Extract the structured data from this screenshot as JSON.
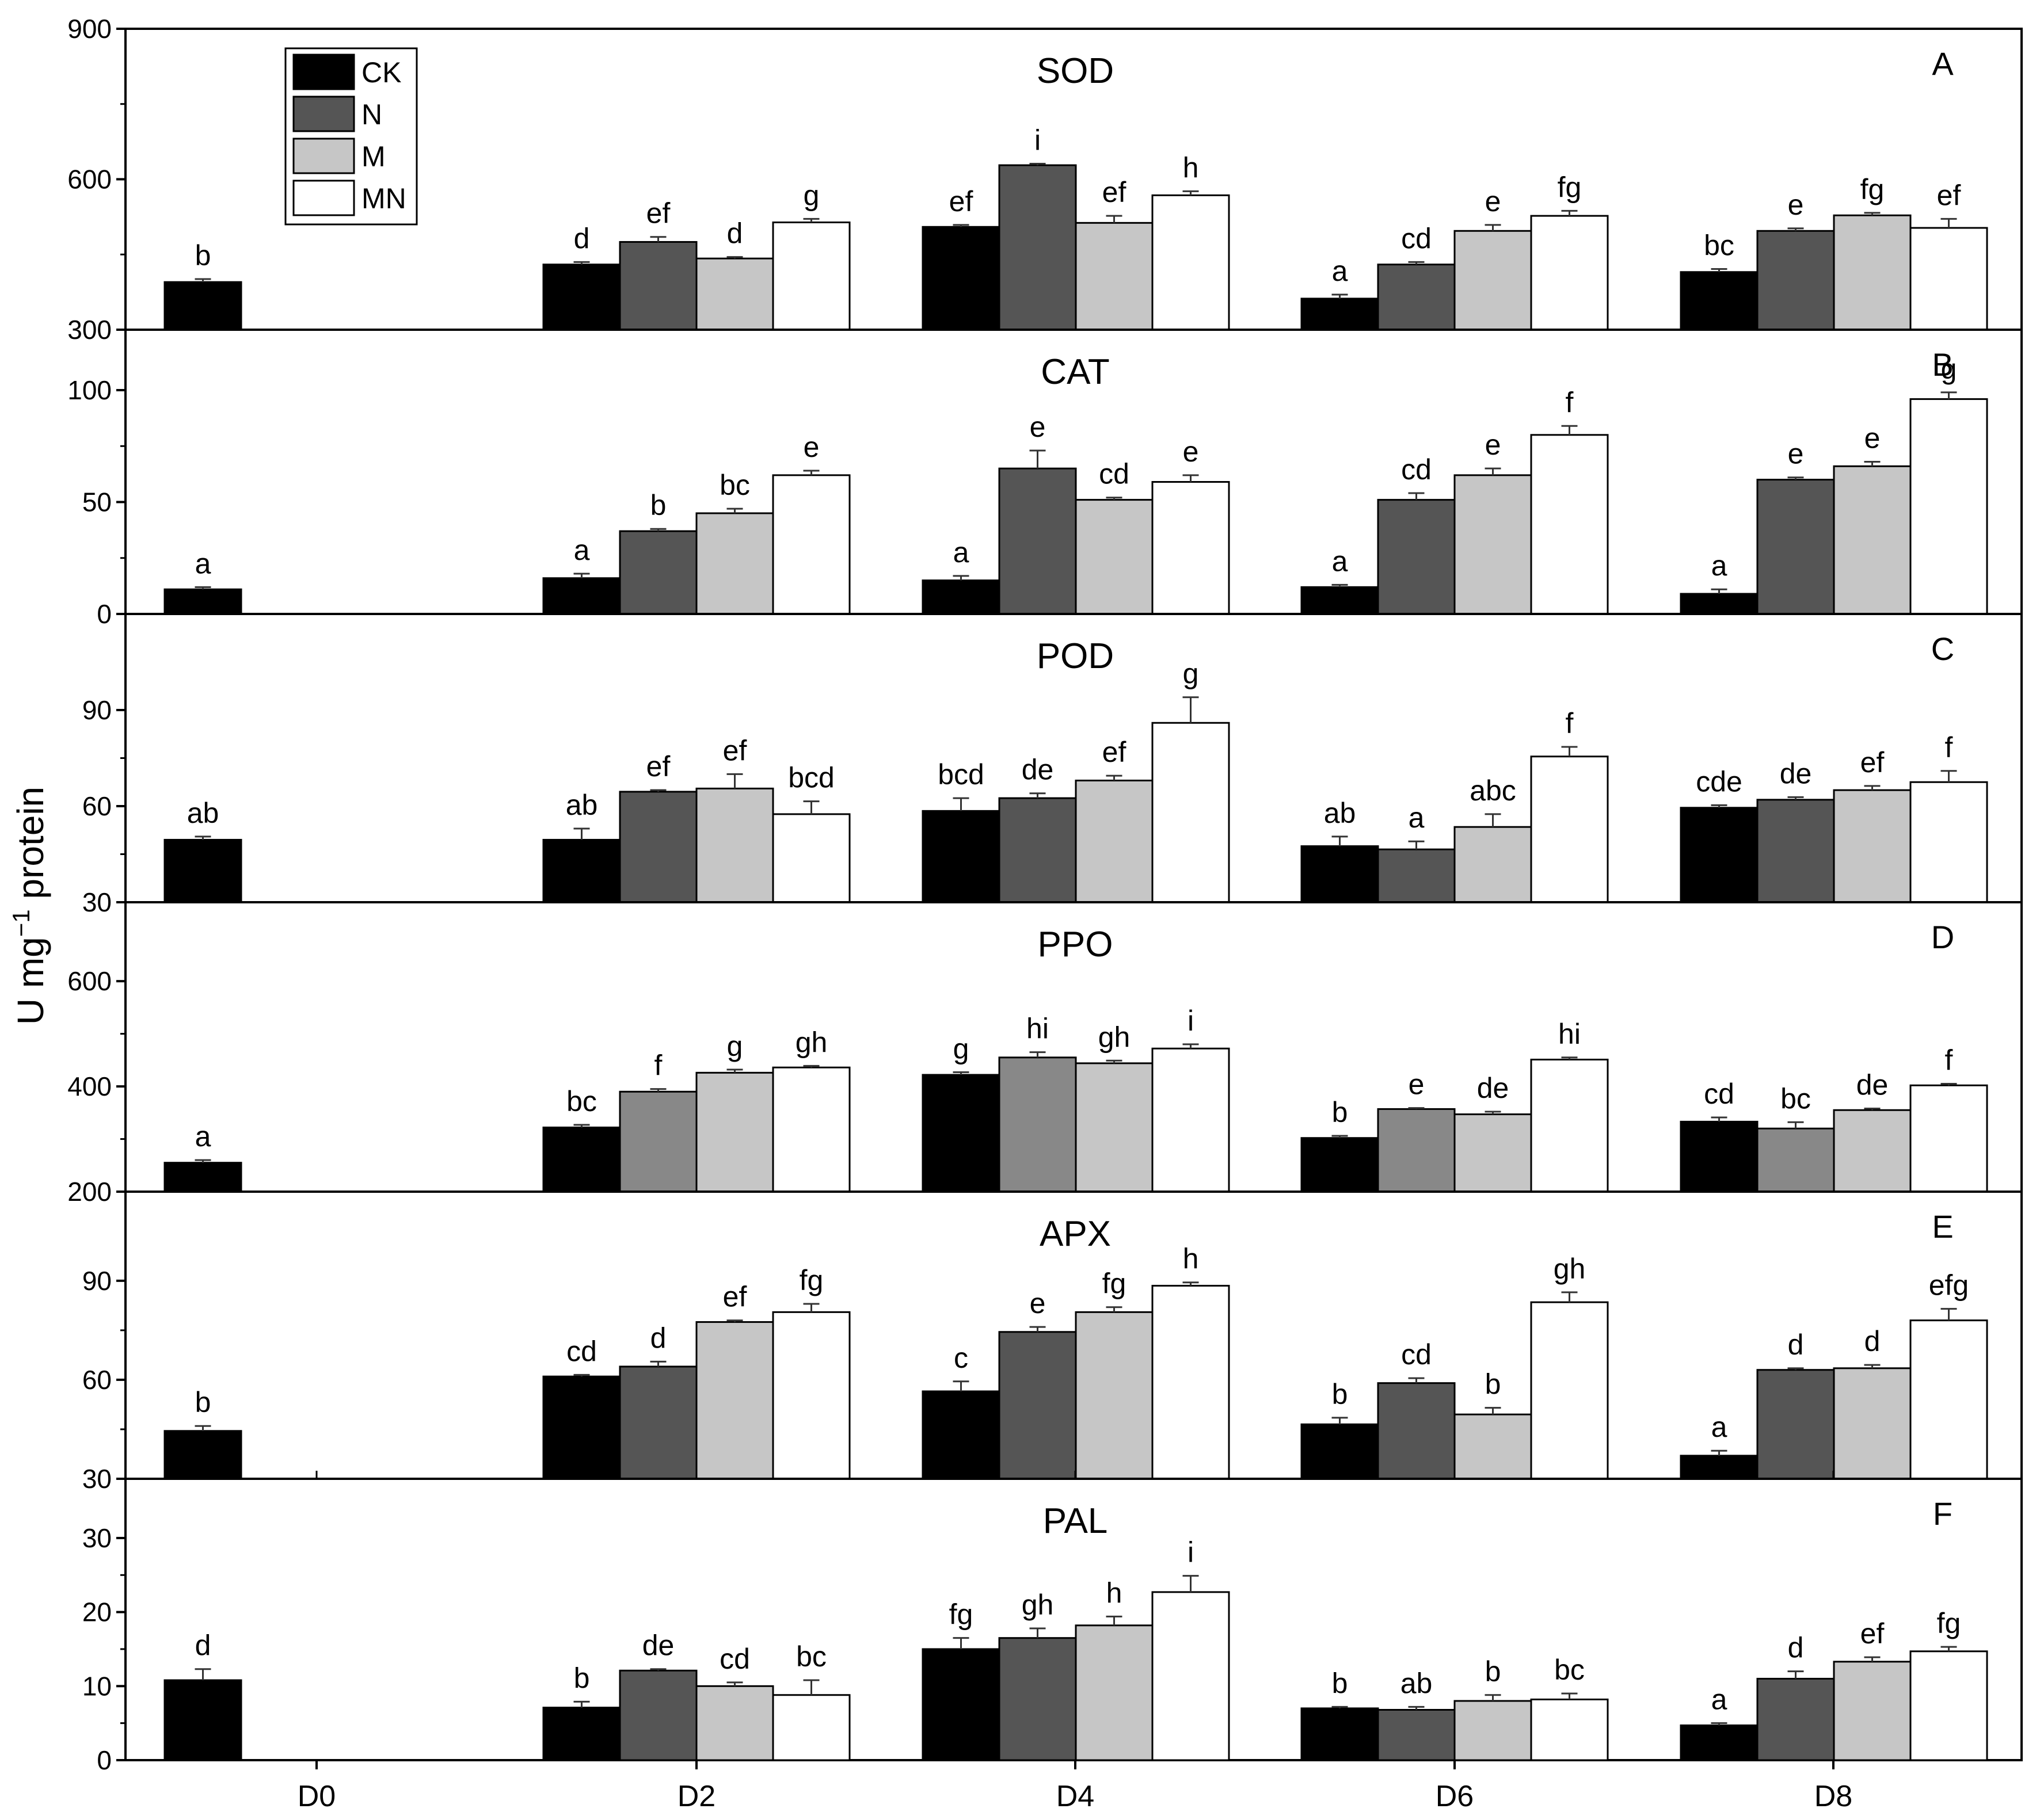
{
  "chart_data": {
    "type": "bar",
    "ylabel": "U mg",
    "ylabel_superscript": "−1",
    "ylabel_suffix": " protein",
    "categories": [
      "D0",
      "D2",
      "D4",
      "D6",
      "D8"
    ],
    "legend": {
      "placement": "top-left",
      "entries": [
        {
          "name": "CK",
          "color": "#000000"
        },
        {
          "name": "N",
          "color": "#555555"
        },
        {
          "name": "M",
          "color": "#c6c6c6"
        },
        {
          "name": "MN",
          "color": "#ffffff"
        }
      ]
    },
    "panels": [
      {
        "letter": "A",
        "title": "SOD",
        "ylim": [
          300,
          900
        ],
        "yticks": [
          300,
          600,
          900
        ],
        "series": [
          {
            "name": "CK",
            "values": [
              395,
              430,
              505,
              362,
              415
            ],
            "errors": [
              6,
              5,
              4,
              8,
              6
            ],
            "labels": [
              "b",
              "d",
              "ef",
              "a",
              "bc"
            ]
          },
          {
            "name": "N",
            "values": [
              null,
              475,
              628,
              430,
              497
            ],
            "errors": [
              null,
              10,
              3,
              5,
              5
            ],
            "labels": [
              null,
              "ef",
              "i",
              "cd",
              "e"
            ]
          },
          {
            "name": "M",
            "values": [
              null,
              442,
              513,
              497,
              528
            ],
            "errors": [
              null,
              3,
              14,
              12,
              5
            ],
            "labels": [
              null,
              "d",
              "ef",
              "e",
              "fg"
            ]
          },
          {
            "name": "MN",
            "values": [
              null,
              514,
              568,
              527,
              503
            ],
            "errors": [
              null,
              7,
              8,
              10,
              18
            ],
            "labels": [
              null,
              "g",
              "h",
              "fg",
              "ef"
            ]
          }
        ]
      },
      {
        "letter": "B",
        "title": "CAT",
        "ylim": [
          0,
          127
        ],
        "yticks": [
          0,
          50,
          100
        ],
        "series": [
          {
            "name": "CK",
            "values": [
              11,
              16,
              15,
              12,
              9
            ],
            "errors": [
              1,
              2,
              2,
              1,
              2
            ],
            "labels": [
              "a",
              "a",
              "a",
              "a",
              "a"
            ]
          },
          {
            "name": "N",
            "values": [
              null,
              37,
              65,
              51,
              60
            ],
            "errors": [
              null,
              1,
              8,
              3,
              1
            ],
            "labels": [
              null,
              "b",
              "e",
              "cd",
              "e"
            ]
          },
          {
            "name": "M",
            "values": [
              null,
              45,
              51,
              62,
              66
            ],
            "errors": [
              null,
              2,
              1,
              3,
              2
            ],
            "labels": [
              null,
              "bc",
              "cd",
              "e",
              "e"
            ]
          },
          {
            "name": "MN",
            "values": [
              null,
              62,
              59,
              80,
              96
            ],
            "errors": [
              null,
              2,
              3,
              4,
              3
            ],
            "labels": [
              null,
              "e",
              "e",
              "f",
              "g"
            ]
          }
        ]
      },
      {
        "letter": "C",
        "title": "POD",
        "ylim": [
          30,
          120
        ],
        "yticks": [
          30,
          60,
          90
        ],
        "series": [
          {
            "name": "CK",
            "values": [
              49.5,
              49.5,
              58.5,
              47.5,
              59.5
            ],
            "errors": [
              1,
              3.5,
              4,
              3,
              0.8
            ],
            "labels": [
              "ab",
              "ab",
              "bcd",
              "ab",
              "cde"
            ]
          },
          {
            "name": "N",
            "values": [
              null,
              64.5,
              62.5,
              46.5,
              62
            ],
            "errors": [
              null,
              0.5,
              1.5,
              2.5,
              0.8
            ],
            "labels": [
              null,
              "ef",
              "de",
              "a",
              "de"
            ]
          },
          {
            "name": "M",
            "values": [
              null,
              65.5,
              68,
              53.5,
              65
            ],
            "errors": [
              null,
              4.5,
              1.5,
              4,
              1.3
            ],
            "labels": [
              null,
              "ef",
              "ef",
              "abc",
              "ef"
            ]
          },
          {
            "name": "MN",
            "values": [
              null,
              57.5,
              86,
              75.5,
              67.5
            ],
            "errors": [
              null,
              4,
              8,
              3,
              3.5
            ],
            "labels": [
              null,
              "bcd",
              "g",
              "f",
              "f"
            ]
          }
        ]
      },
      {
        "letter": "D",
        "title": "PPO",
        "ylim": [
          200,
          750
        ],
        "yticks": [
          200,
          400,
          600
        ],
        "series": [
          {
            "name": "CK",
            "values": [
              255,
              322,
              422,
              302,
              333
            ],
            "errors": [
              5,
              5,
              5,
              4,
              8
            ],
            "labels": [
              "a",
              "bc",
              "g",
              "b",
              "cd"
            ]
          },
          {
            "name": "N",
            "values": [
              null,
              390,
              455,
              357,
              320
            ],
            "errors": [
              null,
              5,
              10,
              2,
              12
            ],
            "labels": [
              null,
              "f",
              "hi",
              "e",
              "bc"
            ]
          },
          {
            "name": "M",
            "values": [
              null,
              426,
              444,
              347,
              355
            ],
            "errors": [
              null,
              6,
              5,
              5,
              3
            ],
            "labels": [
              null,
              "g",
              "gh",
              "de",
              "de"
            ]
          },
          {
            "name": "MN",
            "values": [
              null,
              436,
              472,
              451,
              402
            ],
            "errors": [
              null,
              3,
              8,
              4,
              3
            ],
            "labels": [
              null,
              "gh",
              "i",
              "hi",
              "f"
            ]
          }
        ]
      },
      {
        "letter": "E",
        "title": "APX",
        "ylim": [
          30,
          117
        ],
        "yticks": [
          30,
          60,
          90
        ],
        "series": [
          {
            "name": "CK",
            "values": [
              44.5,
              61,
              56.5,
              46.5,
              37
            ],
            "errors": [
              1.5,
              0.5,
              3,
              2,
              1.5
            ],
            "labels": [
              "b",
              "cd",
              "c",
              "b",
              "a"
            ]
          },
          {
            "name": "N",
            "values": [
              null,
              64,
              74.5,
              59,
              63
            ],
            "errors": [
              null,
              1.5,
              1.5,
              1.5,
              0.5
            ],
            "labels": [
              null,
              "d",
              "e",
              "cd",
              "d"
            ]
          },
          {
            "name": "M",
            "values": [
              null,
              77.5,
              80.5,
              49.5,
              63.5
            ],
            "errors": [
              null,
              0.5,
              1.5,
              2,
              1
            ],
            "labels": [
              null,
              "ef",
              "fg",
              "b",
              "d"
            ]
          },
          {
            "name": "MN",
            "values": [
              null,
              80.5,
              88.5,
              83.5,
              78
            ],
            "errors": [
              null,
              2.5,
              1,
              3,
              3.5
            ],
            "labels": [
              null,
              "fg",
              "h",
              "gh",
              "efg"
            ]
          }
        ]
      },
      {
        "letter": "F",
        "title": "PAL",
        "ylim": [
          0,
          38
        ],
        "yticks": [
          0,
          10,
          20,
          30
        ],
        "series": [
          {
            "name": "CK",
            "values": [
              10.8,
              7.1,
              15,
              7,
              4.7
            ],
            "errors": [
              1.5,
              0.8,
              1.5,
              0.2,
              0.3
            ],
            "labels": [
              "d",
              "b",
              "fg",
              "b",
              "a"
            ]
          },
          {
            "name": "N",
            "values": [
              null,
              12.1,
              16.5,
              6.8,
              11
            ],
            "errors": [
              null,
              0.2,
              1.3,
              0.4,
              1
            ],
            "labels": [
              null,
              "de",
              "gh",
              "ab",
              "d"
            ]
          },
          {
            "name": "M",
            "values": [
              null,
              10,
              18.2,
              8,
              13.3
            ],
            "errors": [
              null,
              0.5,
              1.2,
              0.8,
              0.6
            ],
            "labels": [
              null,
              "cd",
              "h",
              "b",
              "ef"
            ]
          },
          {
            "name": "MN",
            "values": [
              null,
              8.8,
              22.7,
              8.2,
              14.7
            ],
            "errors": [
              null,
              2,
              2.2,
              0.8,
              0.6
            ],
            "labels": [
              null,
              "bc",
              "i",
              "bc",
              "fg"
            ]
          }
        ]
      }
    ]
  }
}
